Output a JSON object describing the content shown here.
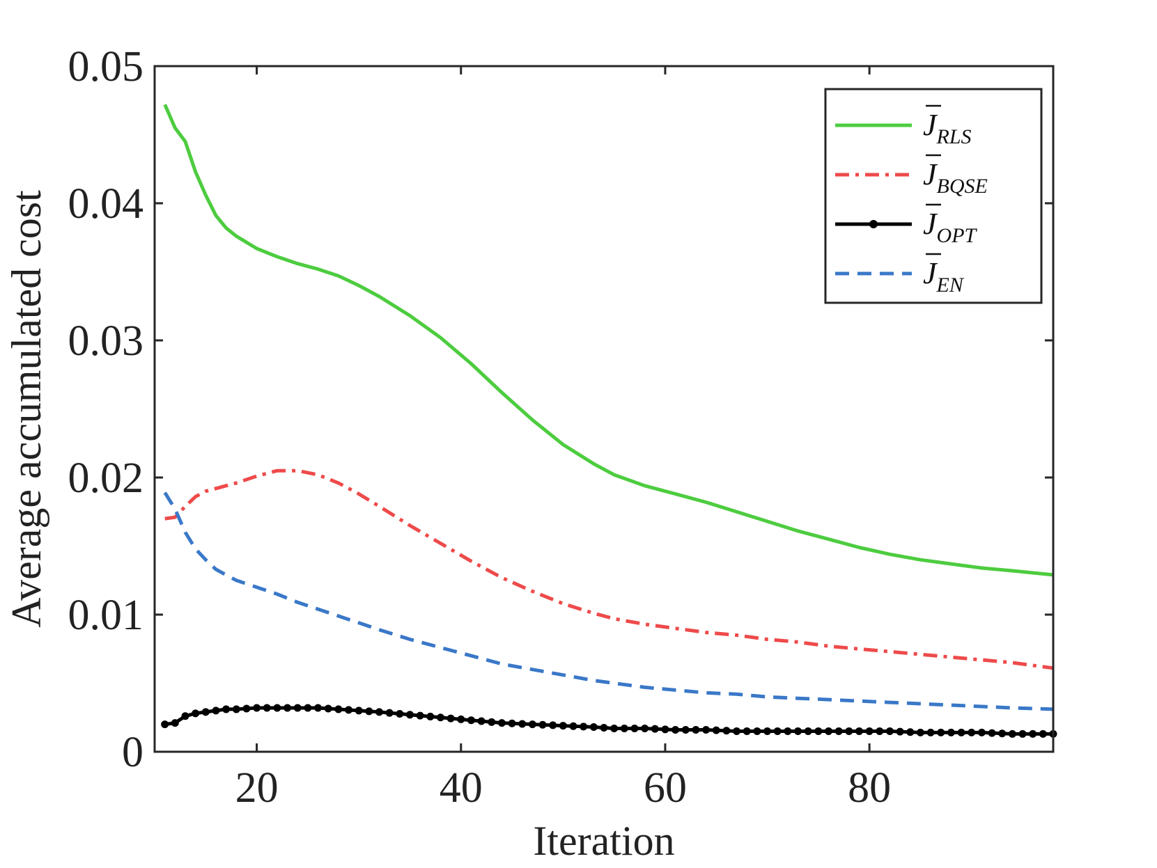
{
  "chart_data": {
    "type": "line",
    "title": "",
    "xlabel": "Iteration",
    "ylabel": "Average accumulated cost",
    "xlim": [
      10,
      98
    ],
    "ylim": [
      0,
      0.05
    ],
    "xticks": [
      20,
      40,
      60,
      80
    ],
    "xtick_labels": [
      "20",
      "40",
      "60",
      "80"
    ],
    "yticks": [
      0,
      0.01,
      0.02,
      0.03,
      0.04,
      0.05
    ],
    "ytick_labels": [
      "0",
      "0.01",
      "0.02",
      "0.03",
      "0.04",
      "0.05"
    ],
    "grid": false,
    "legend_position": "top-right",
    "x": [
      11,
      12,
      13,
      14,
      15,
      16,
      17,
      18,
      20,
      22,
      24,
      26,
      28,
      30,
      32,
      35,
      38,
      41,
      44,
      47,
      50,
      53,
      55,
      58,
      61,
      64,
      67,
      70,
      73,
      76,
      79,
      82,
      85,
      88,
      91,
      94,
      98
    ],
    "series": [
      {
        "name": "J_RLS",
        "label_main": "J",
        "label_sub": "RLS",
        "color": "#4dcc3f",
        "style": "solid",
        "marker": "none",
        "values": [
          0.0472,
          0.0455,
          0.0445,
          0.0423,
          0.0406,
          0.0391,
          0.0382,
          0.0376,
          0.0367,
          0.0361,
          0.0356,
          0.0352,
          0.0347,
          0.034,
          0.0332,
          0.0318,
          0.0302,
          0.0283,
          0.0262,
          0.0242,
          0.0224,
          0.021,
          0.0202,
          0.0194,
          0.0188,
          0.0182,
          0.0175,
          0.0168,
          0.0161,
          0.0155,
          0.0149,
          0.0144,
          0.014,
          0.0137,
          0.0134,
          0.0132,
          0.0129
        ]
      },
      {
        "name": "J_BQSE",
        "label_main": "J",
        "label_sub": "BQSE",
        "color": "#ee4a4a",
        "style": "dashdot",
        "marker": "none",
        "values": [
          0.017,
          0.0171,
          0.0179,
          0.0186,
          0.019,
          0.0192,
          0.0194,
          0.0196,
          0.0201,
          0.0205,
          0.0205,
          0.0202,
          0.0196,
          0.0188,
          0.0179,
          0.0165,
          0.0152,
          0.0139,
          0.0127,
          0.0117,
          0.0108,
          0.0101,
          0.0097,
          0.0093,
          0.009,
          0.0087,
          0.0085,
          0.0082,
          0.008,
          0.0077,
          0.0075,
          0.0073,
          0.0071,
          0.0069,
          0.0067,
          0.0065,
          0.0061
        ]
      },
      {
        "name": "J_OPT",
        "label_main": "J",
        "label_sub": "OPT",
        "color": "#000000",
        "style": "solid",
        "marker": "dot",
        "values": [
          0.002,
          0.0021,
          0.0026,
          0.0028,
          0.0029,
          0.003,
          0.0031,
          0.0031,
          0.0032,
          0.0032,
          0.0032,
          0.0032,
          0.0031,
          0.003,
          0.0029,
          0.0027,
          0.0025,
          0.0023,
          0.0021,
          0.002,
          0.0019,
          0.0018,
          0.0017,
          0.0017,
          0.0016,
          0.0016,
          0.0015,
          0.0015,
          0.0015,
          0.0015,
          0.0015,
          0.0015,
          0.0014,
          0.0014,
          0.0014,
          0.0013,
          0.0013
        ]
      },
      {
        "name": "J_EN",
        "label_main": "J",
        "label_sub": "EN",
        "color": "#3a78c8",
        "style": "dashed",
        "marker": "none",
        "values": [
          0.0189,
          0.0177,
          0.016,
          0.0148,
          0.014,
          0.0133,
          0.0129,
          0.0125,
          0.012,
          0.0115,
          0.0109,
          0.0104,
          0.0099,
          0.0094,
          0.0089,
          0.0082,
          0.0076,
          0.007,
          0.0064,
          0.006,
          0.0056,
          0.0052,
          0.005,
          0.0047,
          0.0045,
          0.0043,
          0.0042,
          0.004,
          0.0039,
          0.0038,
          0.0037,
          0.0036,
          0.0035,
          0.0034,
          0.0033,
          0.0032,
          0.0031
        ]
      }
    ]
  }
}
